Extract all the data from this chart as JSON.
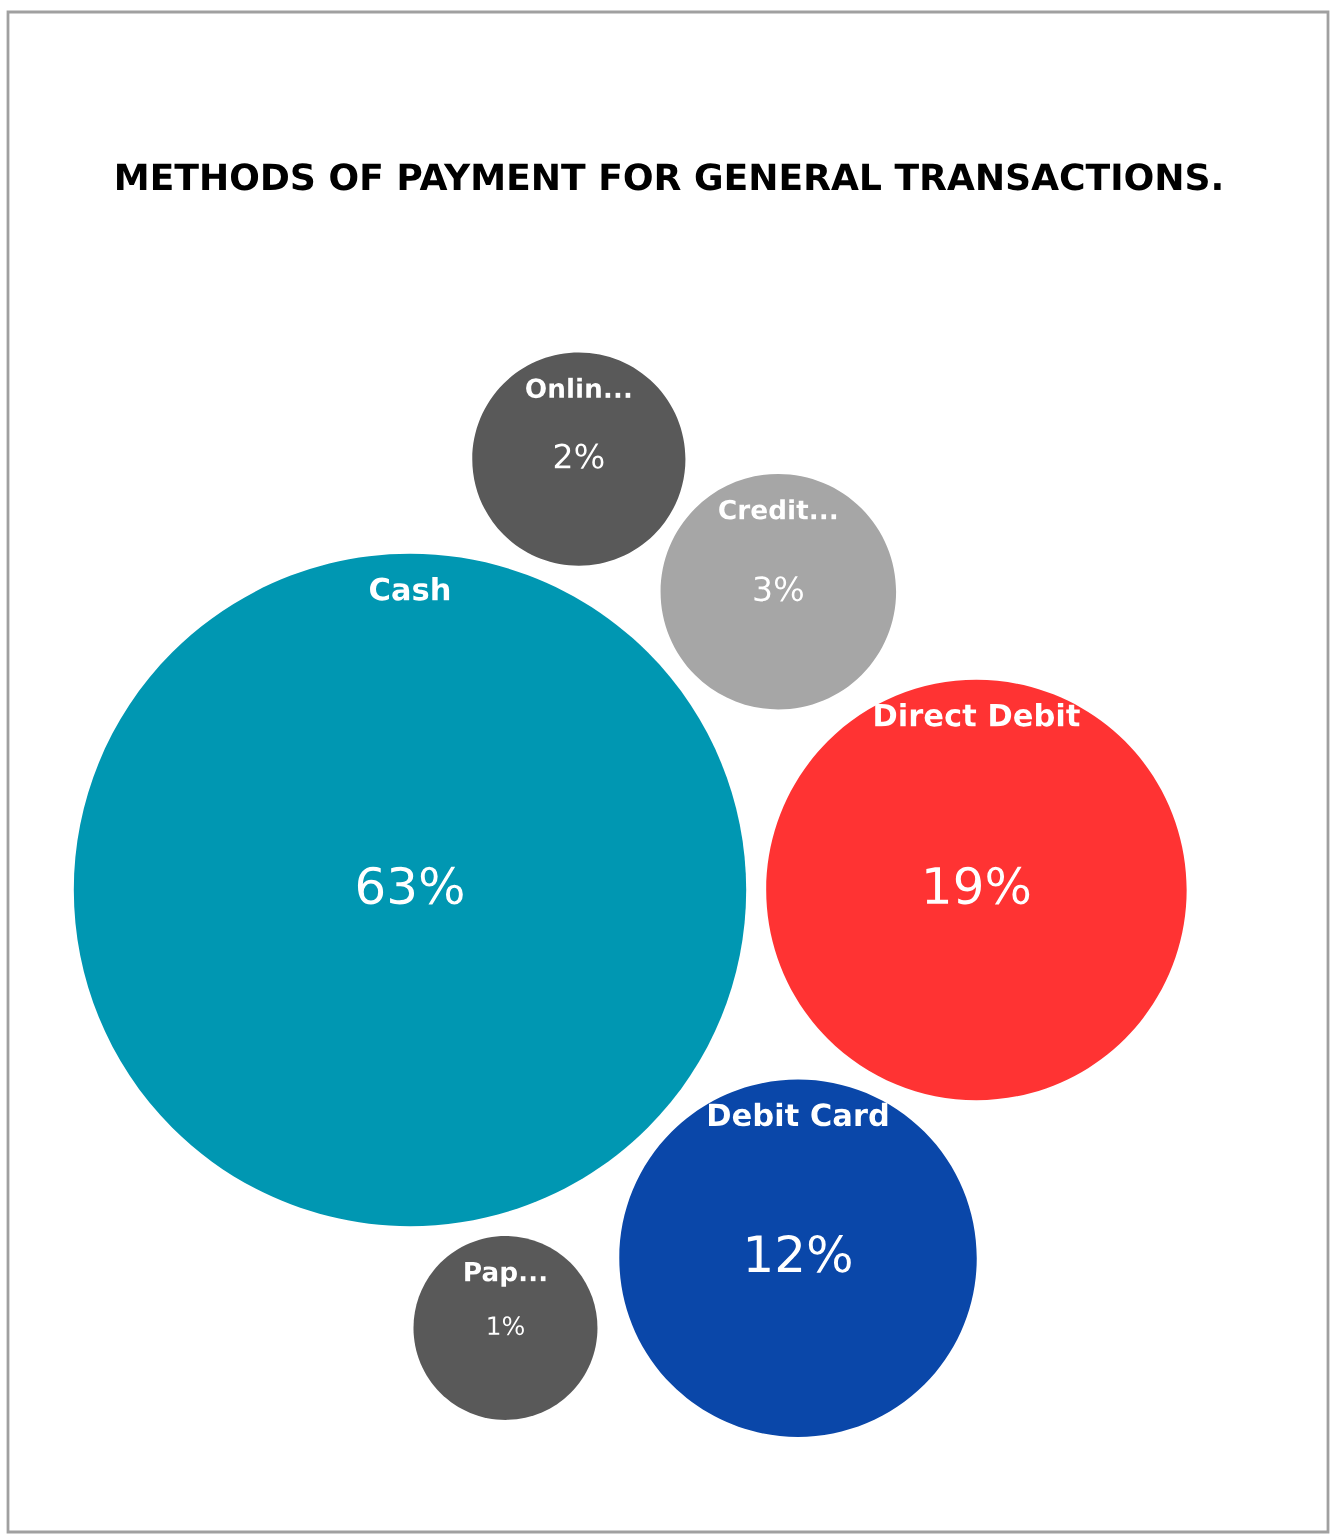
{
  "chart_data": {
    "type": "other",
    "title": "METHODS OF PAYMENT FOR GENERAL TRANSACTIONS.",
    "categories": [
      "Cash",
      "Direct Debit",
      "Debit Card",
      "Credit...",
      "Onlin...",
      "Pap..."
    ],
    "values": [
      63,
      19,
      12,
      3,
      2,
      1
    ],
    "value_labels": [
      "63%",
      "19%",
      "12%",
      "3%",
      "2%",
      "1%"
    ],
    "colors": [
      "#0097b2",
      "#ff3333",
      "#0a47a9",
      "#a6a6a6",
      "#595959",
      "#595959"
    ]
  }
}
